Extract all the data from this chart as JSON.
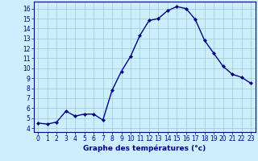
{
  "hours": [
    0,
    1,
    2,
    3,
    4,
    5,
    6,
    7,
    8,
    9,
    10,
    11,
    12,
    13,
    14,
    15,
    16,
    17,
    18,
    19,
    20,
    21,
    22,
    23
  ],
  "temps": [
    4.5,
    4.4,
    4.6,
    5.7,
    5.2,
    5.4,
    5.4,
    4.8,
    7.8,
    9.7,
    11.2,
    13.3,
    14.8,
    15.0,
    15.8,
    16.2,
    16.0,
    14.9,
    12.8,
    11.5,
    10.2,
    9.4,
    9.1,
    8.5
  ],
  "line_color": "#00008B",
  "marker": "D",
  "marker_size": 2.0,
  "bg_color": "#cceeff",
  "grid_color": "#99cccc",
  "xlabel": "Graphe des températures (°c)",
  "xlabel_color": "#00008B",
  "ylabel_ticks": [
    4,
    5,
    6,
    7,
    8,
    9,
    10,
    11,
    12,
    13,
    14,
    15,
    16
  ],
  "ylim": [
    3.6,
    16.7
  ],
  "xlim": [
    -0.5,
    23.5
  ],
  "xtick_labels": [
    "0",
    "1",
    "2",
    "3",
    "4",
    "5",
    "6",
    "7",
    "8",
    "9",
    "10",
    "11",
    "12",
    "13",
    "14",
    "15",
    "16",
    "17",
    "18",
    "19",
    "20",
    "21",
    "22",
    "23"
  ],
  "tick_fontsize": 5.5,
  "xlabel_fontsize": 6.5,
  "tick_color": "#00008B",
  "axis_color": "#00008B",
  "linewidth": 1.0
}
